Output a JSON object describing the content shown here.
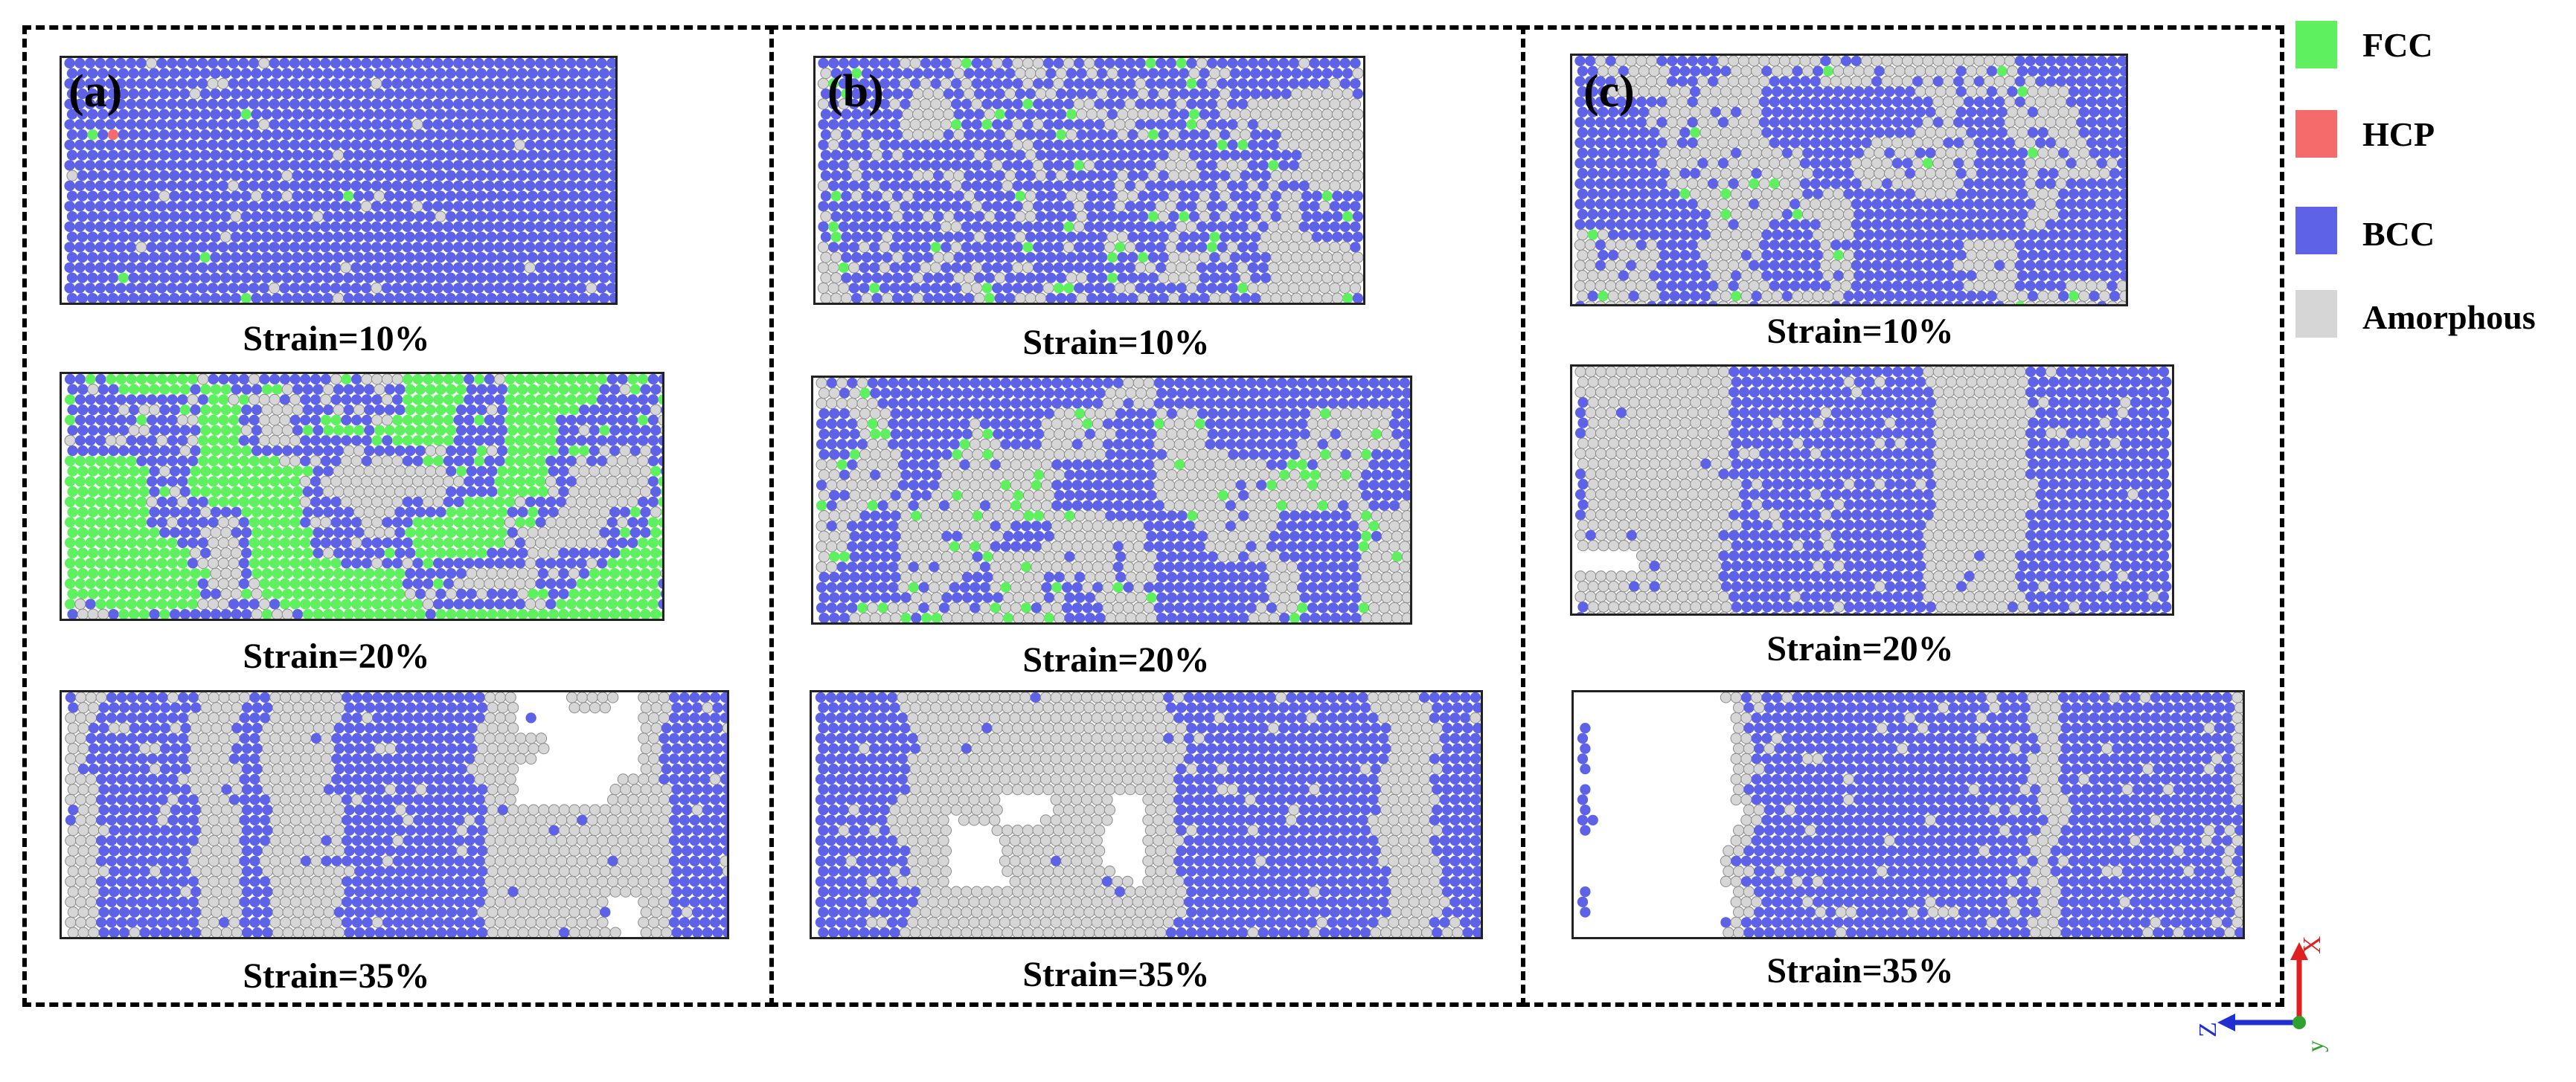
{
  "panels": [
    {
      "label": "(a)",
      "strains": [
        "Strain=10%",
        "Strain=20%",
        "Strain=35%"
      ]
    },
    {
      "label": "(b)",
      "strains": [
        "Strain=10%",
        "Strain=20%",
        "Strain=35%"
      ]
    },
    {
      "label": "(c)",
      "strains": [
        "Strain=10%",
        "Strain=20%",
        "Strain=35%"
      ]
    }
  ],
  "legend": [
    {
      "label": "FCC",
      "color": "#5ef05e"
    },
    {
      "label": "HCP",
      "color": "#f56a6a"
    },
    {
      "label": "BCC",
      "color": "#5d62e6"
    },
    {
      "label": "Amorphous",
      "color": "#d6d6d6"
    }
  ],
  "axes": {
    "x": "X",
    "z": "Z",
    "y": "y"
  }
}
